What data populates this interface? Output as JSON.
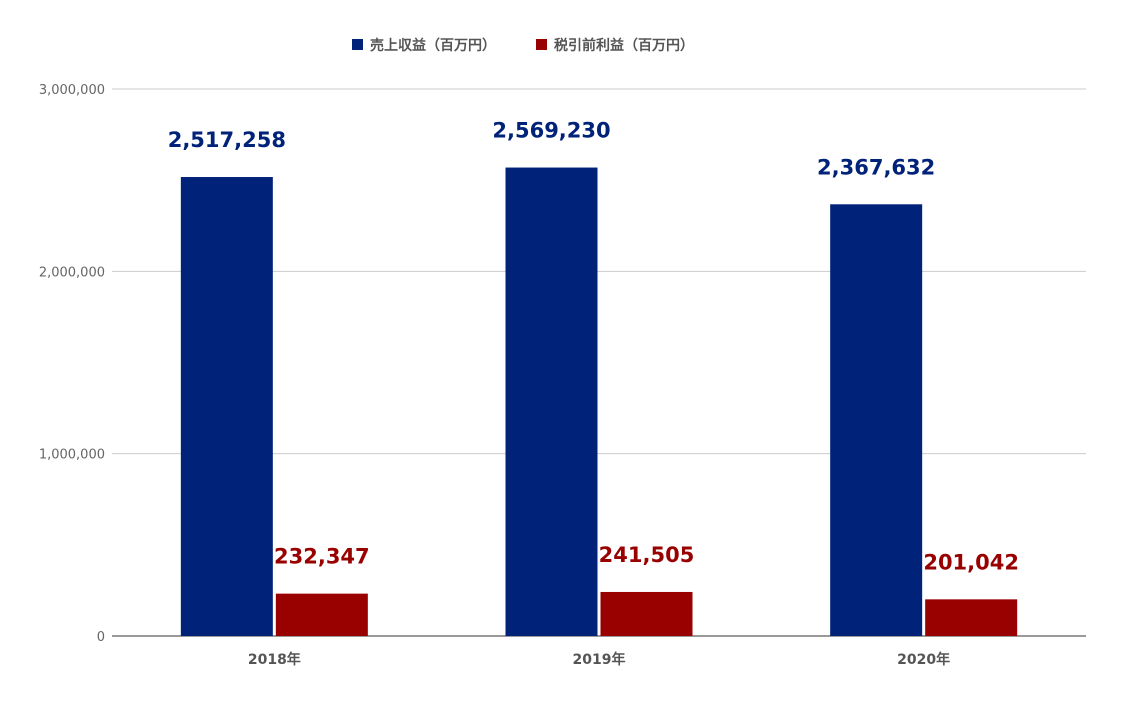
{
  "chart_data": {
    "type": "bar",
    "title": "",
    "xlabel": "",
    "ylabel": "",
    "categories": [
      "2018年",
      "2019年",
      "2020年"
    ],
    "series": [
      {
        "name": "売上収益（百万円）",
        "color": "#002279",
        "values": [
          2517258,
          2569230,
          2367632
        ],
        "value_labels": [
          "2,517,258",
          "2,569,230",
          "2,367,632"
        ]
      },
      {
        "name": "税引前利益（百万円）",
        "color": "#990000",
        "values": [
          232347,
          241505,
          201042
        ],
        "value_labels": [
          "232,347",
          "241,505",
          "201,042"
        ]
      }
    ],
    "ylim": [
      0,
      3000000
    ],
    "yticks": [
      0,
      1000000,
      2000000,
      3000000
    ],
    "ytick_labels": [
      "0",
      "1,000,000",
      "2,000,000",
      "3,000,000"
    ],
    "grid": true,
    "legend_position": "top-center"
  }
}
